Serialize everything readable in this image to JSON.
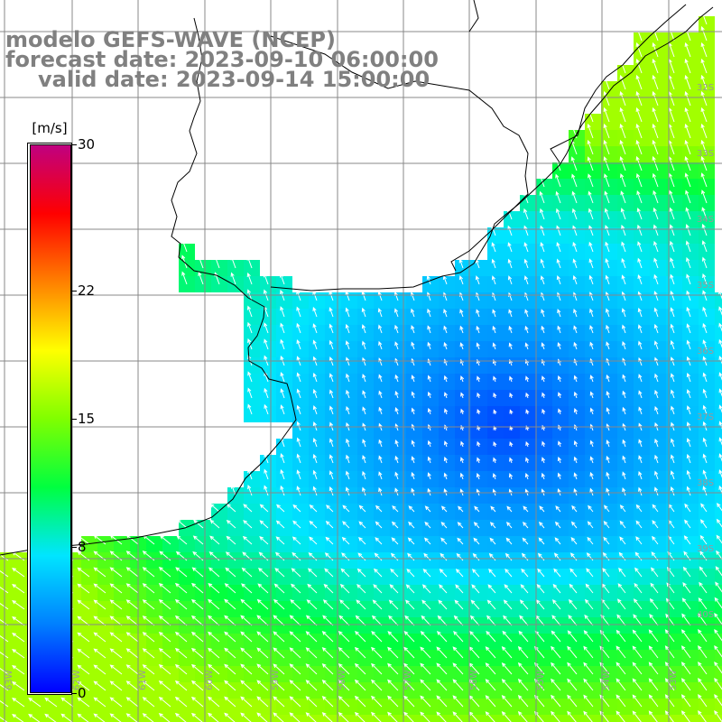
{
  "title": {
    "line1": "modelo GEFS-WAVE (NCEP)",
    "line2": "forecast date: 2023-09-10 06:00:00",
    "line3": "valid date: 2023-09-14 15:00:00"
  },
  "colorbar": {
    "unit": "[m/s]",
    "ticks": [
      "30",
      "22",
      "15",
      "8",
      "0"
    ],
    "tick_values": [
      30,
      22,
      15,
      8,
      0
    ],
    "vmin": 0,
    "vmax": 30,
    "colors": [
      "#0000ff",
      "#0080ff",
      "#00e5ff",
      "#00ff40",
      "#80ff00",
      "#ffff00",
      "#ff8000",
      "#ff0000",
      "#c00080"
    ]
  },
  "map": {
    "field": "wind speed",
    "region": "Rio de la Plata / South Atlantic",
    "lat_labels": [
      "32S",
      "33S",
      "34S",
      "35S",
      "36S",
      "37S",
      "38S",
      "39S",
      "40S"
    ],
    "lon_labels": [
      "63W",
      "62W",
      "61W",
      "60W",
      "59W",
      "58W",
      "57W",
      "56W",
      "55W",
      "54W",
      "53W"
    ],
    "land_color": "#ffffff",
    "grid_color": "#888888",
    "coast_color": "#000000",
    "arrow_color": "#ffffff",
    "vector_direction": "northwest"
  }
}
